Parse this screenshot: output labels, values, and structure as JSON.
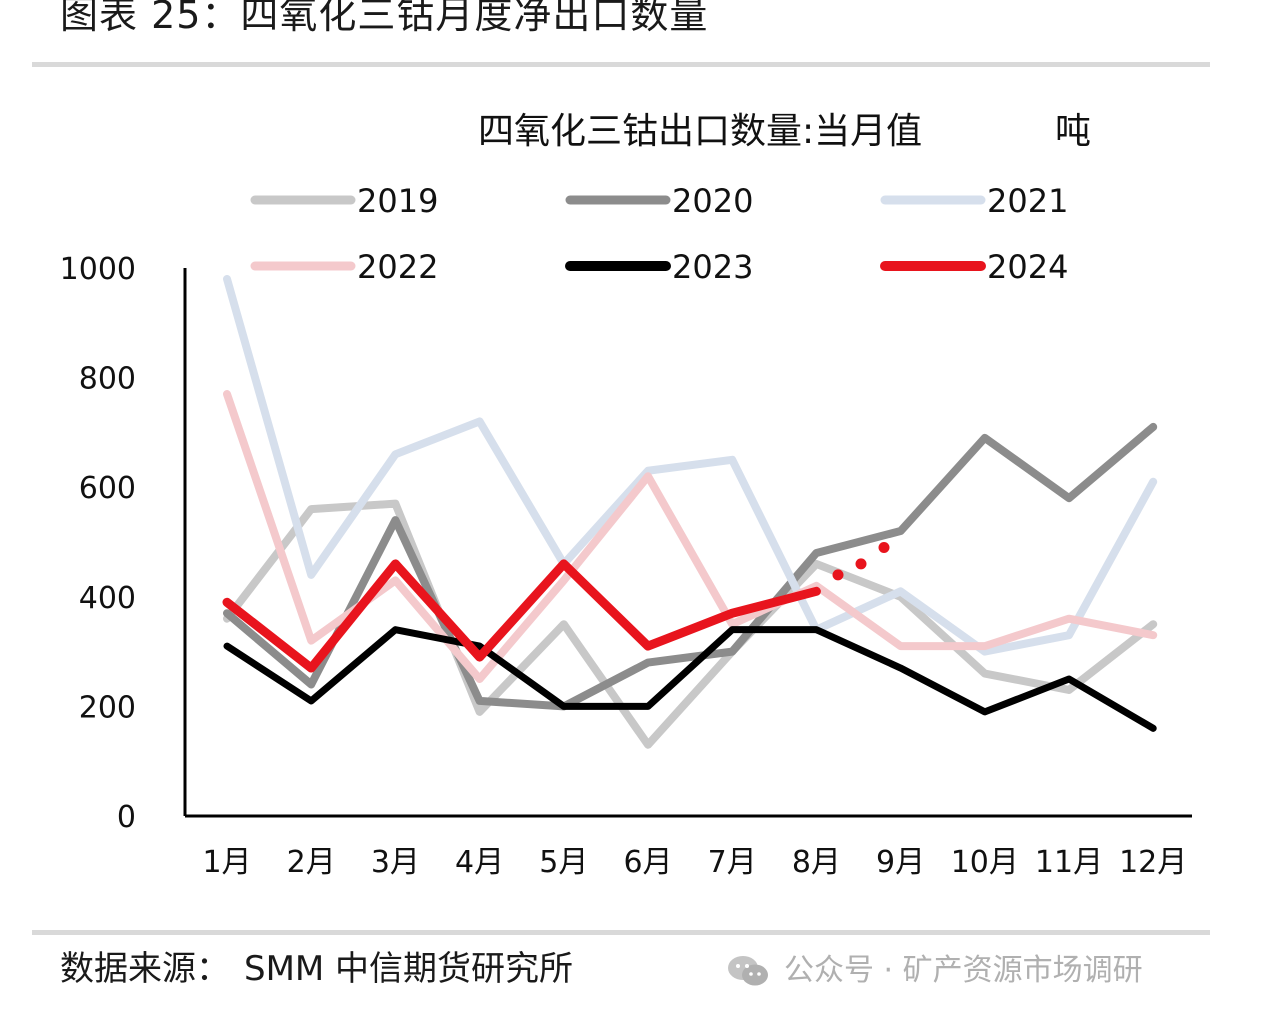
{
  "figure": {
    "title": "图表 25：四氧化三钴月度净出口数量",
    "source_label": "数据来源：",
    "source_name": "SMM 中信期货研究所",
    "watermark": "公众号 · 矿产资源市场调研",
    "watermark_icon": "wechat-icon"
  },
  "chart_data": {
    "type": "line",
    "title": "四氧化三钴出口数量:当月值",
    "unit": "吨",
    "xlabel": "",
    "ylabel": "",
    "categories": [
      "1月",
      "2月",
      "3月",
      "4月",
      "5月",
      "6月",
      "7月",
      "8月",
      "9月",
      "10月",
      "11月",
      "12月"
    ],
    "ylim": [
      0,
      1000
    ],
    "yticks": [
      0,
      200,
      400,
      600,
      800,
      1000
    ],
    "legend_position": "top",
    "series": [
      {
        "name": "2019",
        "color": "#c8c8c8",
        "values": [
          360,
          560,
          570,
          190,
          350,
          130,
          300,
          460,
          400,
          260,
          230,
          350
        ]
      },
      {
        "name": "2020",
        "color": "#8c8c8c",
        "values": [
          370,
          240,
          540,
          210,
          200,
          280,
          300,
          480,
          520,
          690,
          580,
          710
        ]
      },
      {
        "name": "2021",
        "color": "#d6dfec",
        "values": [
          980,
          440,
          660,
          720,
          460,
          630,
          650,
          340,
          410,
          300,
          330,
          610
        ]
      },
      {
        "name": "2022",
        "color": "#f4c9cc",
        "values": [
          770,
          320,
          430,
          250,
          430,
          620,
          350,
          420,
          310,
          310,
          360,
          330
        ]
      },
      {
        "name": "2023",
        "color": "#000000",
        "values": [
          310,
          210,
          340,
          310,
          200,
          200,
          340,
          340,
          270,
          190,
          250,
          160
        ]
      },
      {
        "name": "2024",
        "color": "#e8141d",
        "values": [
          390,
          270,
          460,
          290,
          460,
          310,
          370,
          410,
          null,
          null,
          null,
          null
        ],
        "projection": [
          440,
          460,
          490
        ]
      }
    ]
  }
}
